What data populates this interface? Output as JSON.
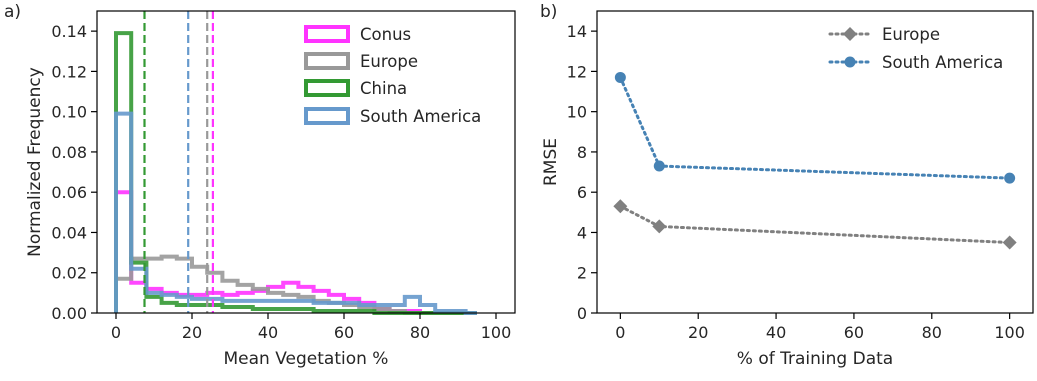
{
  "chart_data": [
    {
      "panel_label": "a)",
      "type": "histogram",
      "xlabel": "Mean Vegetation %",
      "ylabel": "Normalized Frequency",
      "xlim": [
        -5,
        105
      ],
      "ylim": [
        0,
        0.15
      ],
      "xticks": [
        0,
        20,
        40,
        60,
        80,
        100
      ],
      "yticks": [
        0.0,
        0.02,
        0.04,
        0.06,
        0.08,
        0.1,
        0.12,
        0.14
      ],
      "ytick_labels": [
        "0.00",
        "0.02",
        "0.04",
        "0.06",
        "0.08",
        "0.10",
        "0.12",
        "0.14"
      ],
      "legend_position": "top-right",
      "grid": false,
      "bin_edges": [
        0,
        4,
        8,
        12,
        16,
        20,
        24,
        28,
        32,
        36,
        40,
        44,
        48,
        52,
        56,
        60,
        64,
        68,
        72,
        76,
        80,
        84,
        88,
        92,
        95
      ],
      "series": [
        {
          "name": "Conus",
          "color": "#ff33ff",
          "values": [
            0.06,
            0.015,
            0.012,
            0.01,
            0.009,
            0.009,
            0.01,
            0.009,
            0.01,
            0.011,
            0.013,
            0.015,
            0.013,
            0.011,
            0.009,
            0.007,
            0.005,
            0.002,
            0.001,
            0.001,
            0.0,
            0.0,
            0.0,
            0.0
          ],
          "mean": 25.5
        },
        {
          "name": "Europe",
          "color": "#999999",
          "values": [
            0.017,
            0.027,
            0.027,
            0.028,
            0.027,
            0.023,
            0.02,
            0.016,
            0.014,
            0.012,
            0.01,
            0.009,
            0.008,
            0.006,
            0.005,
            0.004,
            0.003,
            0.002,
            0.001,
            0.0,
            0.0,
            0.0,
            0.0,
            0.0
          ],
          "mean": 24.0
        },
        {
          "name": "China",
          "color": "#339933",
          "values": [
            0.139,
            0.025,
            0.008,
            0.005,
            0.004,
            0.004,
            0.004,
            0.003,
            0.003,
            0.002,
            0.002,
            0.002,
            0.002,
            0.001,
            0.001,
            0.001,
            0.001,
            0.0,
            0.0,
            0.0,
            0.0,
            0.0,
            0.0,
            0.0
          ],
          "mean": 7.5
        },
        {
          "name": "South America",
          "color": "#6699cc",
          "values": [
            0.099,
            0.022,
            0.01,
            0.009,
            0.008,
            0.007,
            0.007,
            0.006,
            0.006,
            0.006,
            0.006,
            0.006,
            0.006,
            0.005,
            0.005,
            0.005,
            0.004,
            0.004,
            0.004,
            0.008,
            0.004,
            0.001,
            0.001,
            0.0
          ],
          "mean": 19.0
        }
      ]
    },
    {
      "panel_label": "b)",
      "type": "line",
      "xlabel": "% of Training Data",
      "ylabel": "RMSE",
      "xlim": [
        -6,
        106
      ],
      "ylim": [
        0,
        15
      ],
      "xticks": [
        0,
        20,
        40,
        60,
        80,
        100
      ],
      "yticks": [
        0,
        2,
        4,
        6,
        8,
        10,
        12,
        14
      ],
      "legend_position": "top-right",
      "grid": false,
      "x": [
        0,
        10,
        100
      ],
      "series": [
        {
          "name": "Europe",
          "color": "#808080",
          "marker": "diamond",
          "values": [
            5.3,
            4.3,
            3.5
          ]
        },
        {
          "name": "South America",
          "color": "#4682b4",
          "marker": "circle",
          "values": [
            11.7,
            7.3,
            6.7
          ]
        }
      ]
    }
  ]
}
